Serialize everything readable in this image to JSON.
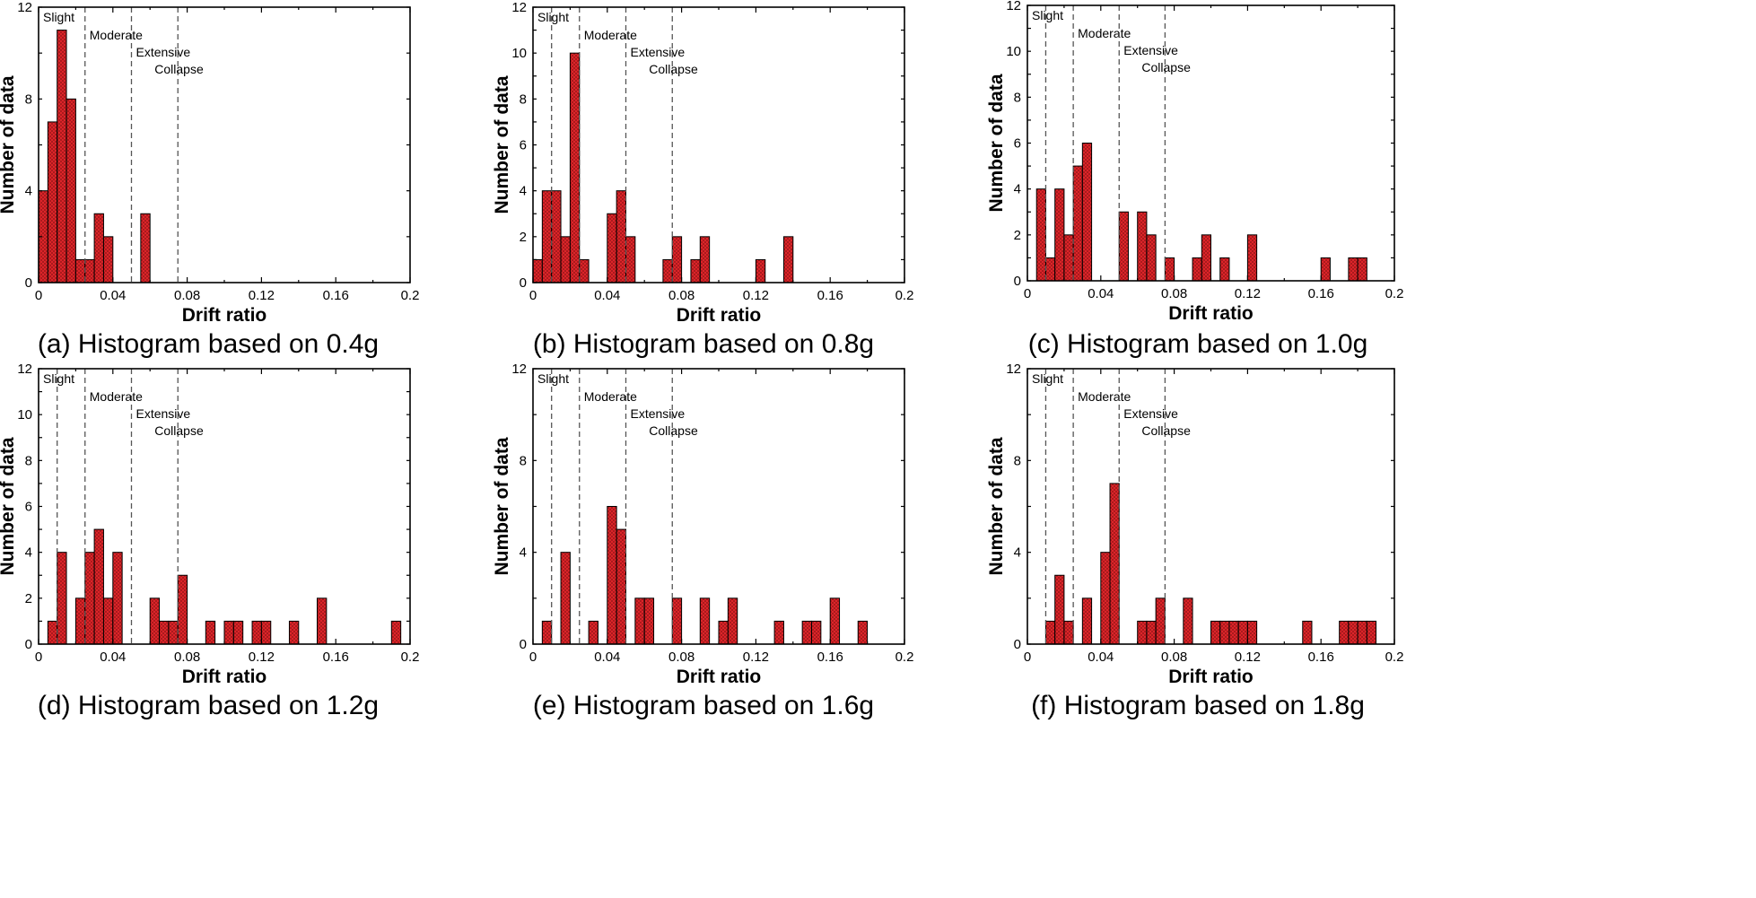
{
  "chart_data": [
    {
      "type": "bar",
      "caption": "(a) Histogram based on 0.4g",
      "xlabel": "Drift ratio",
      "ylabel": "Number of data",
      "xlim": [
        0,
        0.2
      ],
      "ylim": [
        0,
        12
      ],
      "xticks": [
        "0",
        "0.04",
        "0.08",
        "0.12",
        "0.16",
        "0.2"
      ],
      "yticks": [
        "0",
        "4",
        "8",
        "12"
      ],
      "bin_width": 0.005,
      "thresholds": [
        {
          "label": "Slight",
          "x": 0.0
        },
        {
          "label": "Moderate",
          "x": 0.025
        },
        {
          "label": "Extensive",
          "x": 0.05
        },
        {
          "label": "Collapse",
          "x": 0.075
        }
      ],
      "bins": [
        {
          "x": 0.0,
          "count": 4
        },
        {
          "x": 0.005,
          "count": 7
        },
        {
          "x": 0.01,
          "count": 11
        },
        {
          "x": 0.015,
          "count": 8
        },
        {
          "x": 0.02,
          "count": 1
        },
        {
          "x": 0.025,
          "count": 1
        },
        {
          "x": 0.03,
          "count": 3
        },
        {
          "x": 0.035,
          "count": 2
        },
        {
          "x": 0.055,
          "count": 3
        }
      ]
    },
    {
      "type": "bar",
      "caption": "(b) Histogram based on 0.8g",
      "xlabel": "Drift ratio",
      "ylabel": "Number of data",
      "xlim": [
        0,
        0.2
      ],
      "ylim": [
        0,
        12
      ],
      "xticks": [
        "0",
        "0.04",
        "0.08",
        "0.12",
        "0.16",
        "0.2"
      ],
      "yticks": [
        "0",
        "2",
        "4",
        "6",
        "8",
        "10",
        "12"
      ],
      "bin_width": 0.005,
      "thresholds": [
        {
          "label": "Slight",
          "x": 0.01
        },
        {
          "label": "Moderate",
          "x": 0.025
        },
        {
          "label": "Extensive",
          "x": 0.05
        },
        {
          "label": "Collapse",
          "x": 0.075
        }
      ],
      "bins": [
        {
          "x": 0.0,
          "count": 1
        },
        {
          "x": 0.005,
          "count": 4
        },
        {
          "x": 0.01,
          "count": 4
        },
        {
          "x": 0.015,
          "count": 2
        },
        {
          "x": 0.02,
          "count": 10
        },
        {
          "x": 0.025,
          "count": 1
        },
        {
          "x": 0.04,
          "count": 3
        },
        {
          "x": 0.045,
          "count": 4
        },
        {
          "x": 0.05,
          "count": 2
        },
        {
          "x": 0.07,
          "count": 1
        },
        {
          "x": 0.075,
          "count": 2
        },
        {
          "x": 0.085,
          "count": 1
        },
        {
          "x": 0.09,
          "count": 2
        },
        {
          "x": 0.12,
          "count": 1
        },
        {
          "x": 0.135,
          "count": 2
        }
      ]
    },
    {
      "type": "bar",
      "caption": "(c) Histogram based on 1.0g",
      "xlabel": "Drift ratio",
      "ylabel": "Number of data",
      "xlim": [
        0,
        0.2
      ],
      "ylim": [
        0,
        12
      ],
      "xticks": [
        "0",
        "0.04",
        "0.08",
        "0.12",
        "0.16",
        "0.2"
      ],
      "yticks": [
        "0",
        "2",
        "4",
        "6",
        "8",
        "10",
        "12"
      ],
      "bin_width": 0.005,
      "thresholds": [
        {
          "label": "Slight",
          "x": 0.01
        },
        {
          "label": "Moderate",
          "x": 0.025
        },
        {
          "label": "Extensive",
          "x": 0.05
        },
        {
          "label": "Collapse",
          "x": 0.075
        }
      ],
      "bins": [
        {
          "x": 0.005,
          "count": 4
        },
        {
          "x": 0.01,
          "count": 1
        },
        {
          "x": 0.015,
          "count": 4
        },
        {
          "x": 0.02,
          "count": 2
        },
        {
          "x": 0.025,
          "count": 5
        },
        {
          "x": 0.03,
          "count": 6
        },
        {
          "x": 0.05,
          "count": 3
        },
        {
          "x": 0.06,
          "count": 3
        },
        {
          "x": 0.065,
          "count": 2
        },
        {
          "x": 0.075,
          "count": 1
        },
        {
          "x": 0.09,
          "count": 1
        },
        {
          "x": 0.095,
          "count": 2
        },
        {
          "x": 0.105,
          "count": 1
        },
        {
          "x": 0.12,
          "count": 2
        },
        {
          "x": 0.16,
          "count": 1
        },
        {
          "x": 0.175,
          "count": 1
        },
        {
          "x": 0.18,
          "count": 1
        }
      ]
    },
    {
      "type": "bar",
      "caption": "(d) Histogram based on 1.2g",
      "xlabel": "Drift ratio",
      "ylabel": "Number of data",
      "xlim": [
        0,
        0.2
      ],
      "ylim": [
        0,
        12
      ],
      "xticks": [
        "0",
        "0.04",
        "0.08",
        "0.12",
        "0.16",
        "0.2"
      ],
      "yticks": [
        "0",
        "2",
        "4",
        "6",
        "8",
        "10",
        "12"
      ],
      "bin_width": 0.005,
      "thresholds": [
        {
          "label": "Slight",
          "x": 0.01
        },
        {
          "label": "Moderate",
          "x": 0.025
        },
        {
          "label": "Extensive",
          "x": 0.05
        },
        {
          "label": "Collapse",
          "x": 0.075
        }
      ],
      "bins": [
        {
          "x": 0.005,
          "count": 1
        },
        {
          "x": 0.01,
          "count": 4
        },
        {
          "x": 0.02,
          "count": 2
        },
        {
          "x": 0.025,
          "count": 4
        },
        {
          "x": 0.03,
          "count": 5
        },
        {
          "x": 0.035,
          "count": 2
        },
        {
          "x": 0.04,
          "count": 4
        },
        {
          "x": 0.06,
          "count": 2
        },
        {
          "x": 0.065,
          "count": 1
        },
        {
          "x": 0.07,
          "count": 1
        },
        {
          "x": 0.075,
          "count": 3
        },
        {
          "x": 0.09,
          "count": 1
        },
        {
          "x": 0.1,
          "count": 1
        },
        {
          "x": 0.105,
          "count": 1
        },
        {
          "x": 0.115,
          "count": 1
        },
        {
          "x": 0.12,
          "count": 1
        },
        {
          "x": 0.135,
          "count": 1
        },
        {
          "x": 0.15,
          "count": 2
        },
        {
          "x": 0.19,
          "count": 1
        }
      ]
    },
    {
      "type": "bar",
      "caption": "(e) Histogram based on 1.6g",
      "xlabel": "Drift ratio",
      "ylabel": "Number of data",
      "xlim": [
        0,
        0.2
      ],
      "ylim": [
        0,
        12
      ],
      "xticks": [
        "0",
        "0.04",
        "0.08",
        "0.12",
        "0.16",
        "0.2"
      ],
      "yticks": [
        "0",
        "4",
        "8",
        "12"
      ],
      "bin_width": 0.005,
      "thresholds": [
        {
          "label": "Slight",
          "x": 0.01
        },
        {
          "label": "Moderate",
          "x": 0.025
        },
        {
          "label": "Extensive",
          "x": 0.05
        },
        {
          "label": "Collapse",
          "x": 0.075
        }
      ],
      "bins": [
        {
          "x": 0.005,
          "count": 1
        },
        {
          "x": 0.015,
          "count": 4
        },
        {
          "x": 0.03,
          "count": 1
        },
        {
          "x": 0.04,
          "count": 6
        },
        {
          "x": 0.045,
          "count": 5
        },
        {
          "x": 0.055,
          "count": 2
        },
        {
          "x": 0.06,
          "count": 2
        },
        {
          "x": 0.075,
          "count": 2
        },
        {
          "x": 0.09,
          "count": 2
        },
        {
          "x": 0.1,
          "count": 1
        },
        {
          "x": 0.105,
          "count": 2
        },
        {
          "x": 0.13,
          "count": 1
        },
        {
          "x": 0.145,
          "count": 1
        },
        {
          "x": 0.15,
          "count": 1
        },
        {
          "x": 0.16,
          "count": 2
        },
        {
          "x": 0.175,
          "count": 1
        }
      ]
    },
    {
      "type": "bar",
      "caption": "(f) Histogram based on 1.8g",
      "xlabel": "Drift ratio",
      "ylabel": "Number of data",
      "xlim": [
        0,
        0.2
      ],
      "ylim": [
        0,
        12
      ],
      "xticks": [
        "0",
        "0.04",
        "0.08",
        "0.12",
        "0.16",
        "0.2"
      ],
      "yticks": [
        "0",
        "4",
        "8",
        "12"
      ],
      "bin_width": 0.005,
      "thresholds": [
        {
          "label": "Slight",
          "x": 0.01
        },
        {
          "label": "Moderate",
          "x": 0.025
        },
        {
          "label": "Extensive",
          "x": 0.05
        },
        {
          "label": "Collapse",
          "x": 0.075
        }
      ],
      "bins": [
        {
          "x": 0.01,
          "count": 1
        },
        {
          "x": 0.015,
          "count": 3
        },
        {
          "x": 0.02,
          "count": 1
        },
        {
          "x": 0.03,
          "count": 2
        },
        {
          "x": 0.04,
          "count": 4
        },
        {
          "x": 0.045,
          "count": 7
        },
        {
          "x": 0.06,
          "count": 1
        },
        {
          "x": 0.065,
          "count": 1
        },
        {
          "x": 0.07,
          "count": 2
        },
        {
          "x": 0.085,
          "count": 2
        },
        {
          "x": 0.1,
          "count": 1
        },
        {
          "x": 0.105,
          "count": 1
        },
        {
          "x": 0.11,
          "count": 1
        },
        {
          "x": 0.115,
          "count": 1
        },
        {
          "x": 0.12,
          "count": 1
        },
        {
          "x": 0.15,
          "count": 1
        },
        {
          "x": 0.17,
          "count": 1
        },
        {
          "x": 0.175,
          "count": 1
        },
        {
          "x": 0.18,
          "count": 1
        },
        {
          "x": 0.185,
          "count": 1
        }
      ]
    }
  ]
}
